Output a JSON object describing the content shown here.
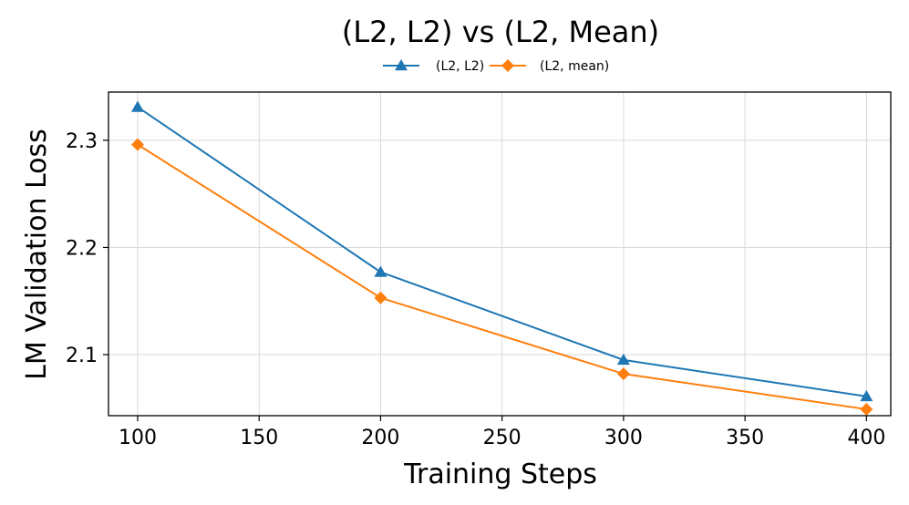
{
  "chart_data": {
    "type": "line",
    "title": "(L2, L2) vs (L2, Mean)",
    "xlabel": "Training Steps",
    "ylabel": "LM Validation Loss",
    "x": [
      100,
      200,
      300,
      400
    ],
    "xlim": [
      88,
      410
    ],
    "ylim": [
      2.043,
      2.345
    ],
    "xticks": [
      100,
      150,
      200,
      250,
      300,
      350,
      400
    ],
    "yticks": [
      2.1,
      2.2,
      2.3
    ],
    "ytick_labels": [
      "2.1",
      "2.2",
      "2.3"
    ],
    "grid": true,
    "legend_position": "top-center",
    "series": [
      {
        "name": "(L2, L2)",
        "values": [
          2.331,
          2.177,
          2.095,
          2.061
        ],
        "color": "#1f77b4",
        "marker": "triangle"
      },
      {
        "name": "(L2, mean)",
        "values": [
          2.296,
          2.153,
          2.082,
          2.049
        ],
        "color": "#ff7f0e",
        "marker": "diamond"
      }
    ]
  }
}
